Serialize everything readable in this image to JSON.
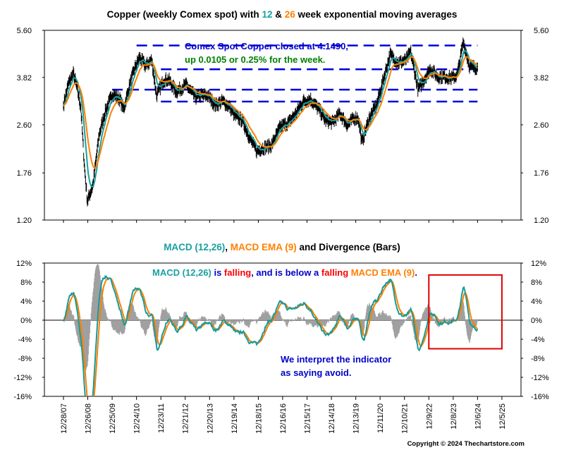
{
  "colors": {
    "price": "#000000",
    "ema12": "#1aa0a0",
    "ema26": "#ff8000",
    "macd": "#1a9a9a",
    "signal": "#ff8000",
    "divergence": "#a0a0a0",
    "blue_text": "#0000cc",
    "green_text": "#008000",
    "red_text": "#ff0000",
    "guideline": "#0000dd",
    "highlight_box": "#e00000"
  },
  "title_parts": [
    {
      "text": "Copper (weekly Comex spot) with ",
      "color": "#000000"
    },
    {
      "text": "12",
      "color": "#1aa0a0"
    },
    {
      "text": " & ",
      "color": "#000000"
    },
    {
      "text": "26",
      "color": "#ff8000"
    },
    {
      "text": " week exponential moving averages",
      "color": "#000000"
    }
  ],
  "macd_title_parts": [
    {
      "text": "MACD (12,26)",
      "color": "#1aa0a0"
    },
    {
      "text": ", ",
      "color": "#000000"
    },
    {
      "text": "MACD EMA (9)",
      "color": "#ff8000"
    },
    {
      "text": " and Divergence (Bars)",
      "color": "#000000"
    }
  ],
  "annotations": {
    "close_line1": "Comex Spot Copper closed at 4.1490,",
    "close_line2": "up 0.0105 or 0.25% for the week.",
    "macd_note_parts": [
      {
        "text": "MACD (12,26)",
        "color": "#1aa0a0"
      },
      {
        "text": " is ",
        "color": "#0000cc"
      },
      {
        "text": "falling",
        "color": "#ff0000"
      },
      {
        "text": ", and is below a ",
        "color": "#0000cc"
      },
      {
        "text": "falling",
        "color": "#ff0000"
      },
      {
        "text": " MACD EMA (9)",
        "color": "#ff8000"
      },
      {
        "text": ".",
        "color": "#0000cc"
      }
    ],
    "interpret_line1": "We interpret the indicator",
    "interpret_line2": "as saying avoid."
  },
  "copyright": "Copyright © 2024 Thechartstore.com",
  "chart_data": [
    {
      "type": "line",
      "title": "Copper (weekly Comex spot) with 12 & 26 week exponential moving averages",
      "yscale": "log",
      "ylim": [
        1.2,
        5.6
      ],
      "y_ticks": [
        "1.20",
        "1.76",
        "2.60",
        "3.82",
        "5.60"
      ],
      "x_ticks": [
        "12/28/07",
        "12/26/08",
        "12/25/09",
        "12/24/10",
        "12/23/11",
        "12/21/12",
        "12/20/13",
        "12/19/14",
        "12/18/15",
        "12/16/16",
        "12/15/17",
        "12/14/18",
        "12/13/19",
        "12/11/20",
        "12/10/21",
        "12/9/22",
        "12/8/23",
        "12/6/24",
        "12/5/25"
      ],
      "last_close": 4.149,
      "weekly_change": 0.0105,
      "weekly_change_pct": 0.25,
      "horizontal_levels": [
        {
          "value": 4.95,
          "from": "12/24/10",
          "to": "12/6/24"
        },
        {
          "value": 4.08,
          "from": "12/23/11",
          "to": "12/6/24"
        },
        {
          "value": 3.46,
          "from": "12/25/09",
          "to": "12/6/24"
        },
        {
          "value": 3.14,
          "from": "12/23/11",
          "to": "12/6/24"
        }
      ],
      "series": [
        {
          "name": "Copper",
          "x": [
            2007.99,
            2008.2,
            2008.4,
            2008.55,
            2008.7,
            2008.85,
            2008.97,
            2009.2,
            2009.45,
            2009.7,
            2010.0,
            2010.3,
            2010.45,
            2010.7,
            2010.9,
            2011.1,
            2011.35,
            2011.6,
            2011.8,
            2012.1,
            2012.3,
            2012.6,
            2013.0,
            2013.4,
            2013.6,
            2013.9,
            2014.2,
            2014.5,
            2014.8,
            2015.0,
            2015.3,
            2015.6,
            2015.9,
            2016.1,
            2016.5,
            2016.85,
            2017.2,
            2017.5,
            2017.8,
            2018.1,
            2018.5,
            2018.7,
            2019.0,
            2019.3,
            2019.6,
            2019.9,
            2020.05,
            2020.2,
            2020.5,
            2020.8,
            2021.0,
            2021.35,
            2021.7,
            2022.0,
            2022.2,
            2022.5,
            2022.7,
            2023.0,
            2023.3,
            2023.6,
            2023.9,
            2024.1,
            2024.35,
            2024.6,
            2024.8,
            2024.94
          ],
          "values": [
            3.05,
            3.65,
            3.95,
            3.5,
            3.0,
            1.85,
            1.4,
            1.6,
            2.4,
            2.9,
            3.35,
            3.2,
            2.95,
            3.6,
            4.1,
            4.5,
            4.2,
            4.4,
            3.3,
            3.75,
            3.75,
            3.4,
            3.6,
            3.25,
            3.3,
            3.3,
            3.05,
            3.15,
            3.0,
            2.8,
            2.7,
            2.35,
            2.1,
            2.15,
            2.2,
            2.55,
            2.65,
            2.85,
            3.15,
            3.2,
            2.9,
            2.7,
            2.65,
            2.85,
            2.6,
            2.75,
            2.75,
            2.25,
            2.75,
            3.05,
            3.55,
            4.6,
            4.3,
            4.4,
            4.7,
            3.45,
            3.7,
            4.1,
            3.85,
            3.85,
            3.8,
            3.9,
            5.1,
            4.2,
            4.15,
            4.149
          ]
        },
        {
          "name": "12",
          "derived_from": "Copper",
          "span": 12
        },
        {
          "name": "26",
          "derived_from": "Copper",
          "span": 26
        }
      ]
    },
    {
      "type": "line",
      "title": "MACD (12,26), MACD EMA (9) and Divergence (Bars)",
      "ylim": [
        -16,
        12
      ],
      "y_ticks": [
        "12%",
        "8%",
        "4%",
        "0%",
        "-4%",
        "-8%",
        "-12%",
        "-16%"
      ],
      "x_ticks": [
        "12/28/07",
        "12/26/08",
        "12/25/09",
        "12/24/10",
        "12/23/11",
        "12/21/12",
        "12/20/13",
        "12/19/14",
        "12/18/15",
        "12/16/16",
        "12/15/17",
        "12/14/18",
        "12/13/19",
        "12/11/20",
        "12/10/21",
        "12/9/22",
        "12/8/23",
        "12/6/24",
        "12/5/25"
      ],
      "highlight_box": {
        "x_from": "12/9/22",
        "x_to": "12/5/25",
        "y_from": -6,
        "y_to": 9.5
      },
      "series": [
        {
          "name": "MACD (12,26)",
          "derived_from": "Copper",
          "unit": "%"
        },
        {
          "name": "MACD EMA (9)",
          "derived_from": "MACD (12,26)",
          "unit": "%"
        },
        {
          "name": "Divergence",
          "derived_from": "MACD (12,26) - MACD EMA (9)",
          "style": "bars",
          "unit": "%"
        }
      ]
    }
  ]
}
